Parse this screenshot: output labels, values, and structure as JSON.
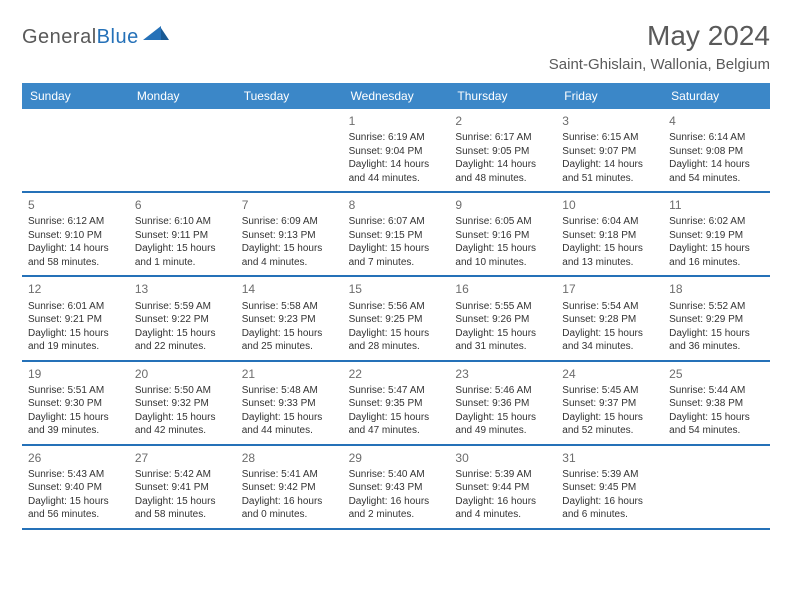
{
  "brand": {
    "general": "General",
    "blue": "Blue"
  },
  "title": "May 2024",
  "location": "Saint-Ghislain, Wallonia, Belgium",
  "colors": {
    "header_bg": "#3b87c8",
    "header_text": "#ffffff",
    "border": "#2571b8",
    "text": "#333333",
    "muted": "#6d6d6d",
    "brand_blue": "#2571b8",
    "brand_gray": "#595959"
  },
  "weekdays": [
    "Sunday",
    "Monday",
    "Tuesday",
    "Wednesday",
    "Thursday",
    "Friday",
    "Saturday"
  ],
  "weeks": [
    [
      null,
      null,
      null,
      {
        "n": "1",
        "sunrise": "6:19 AM",
        "sunset": "9:04 PM",
        "daylight": "14 hours and 44 minutes."
      },
      {
        "n": "2",
        "sunrise": "6:17 AM",
        "sunset": "9:05 PM",
        "daylight": "14 hours and 48 minutes."
      },
      {
        "n": "3",
        "sunrise": "6:15 AM",
        "sunset": "9:07 PM",
        "daylight": "14 hours and 51 minutes."
      },
      {
        "n": "4",
        "sunrise": "6:14 AM",
        "sunset": "9:08 PM",
        "daylight": "14 hours and 54 minutes."
      }
    ],
    [
      {
        "n": "5",
        "sunrise": "6:12 AM",
        "sunset": "9:10 PM",
        "daylight": "14 hours and 58 minutes."
      },
      {
        "n": "6",
        "sunrise": "6:10 AM",
        "sunset": "9:11 PM",
        "daylight": "15 hours and 1 minute."
      },
      {
        "n": "7",
        "sunrise": "6:09 AM",
        "sunset": "9:13 PM",
        "daylight": "15 hours and 4 minutes."
      },
      {
        "n": "8",
        "sunrise": "6:07 AM",
        "sunset": "9:15 PM",
        "daylight": "15 hours and 7 minutes."
      },
      {
        "n": "9",
        "sunrise": "6:05 AM",
        "sunset": "9:16 PM",
        "daylight": "15 hours and 10 minutes."
      },
      {
        "n": "10",
        "sunrise": "6:04 AM",
        "sunset": "9:18 PM",
        "daylight": "15 hours and 13 minutes."
      },
      {
        "n": "11",
        "sunrise": "6:02 AM",
        "sunset": "9:19 PM",
        "daylight": "15 hours and 16 minutes."
      }
    ],
    [
      {
        "n": "12",
        "sunrise": "6:01 AM",
        "sunset": "9:21 PM",
        "daylight": "15 hours and 19 minutes."
      },
      {
        "n": "13",
        "sunrise": "5:59 AM",
        "sunset": "9:22 PM",
        "daylight": "15 hours and 22 minutes."
      },
      {
        "n": "14",
        "sunrise": "5:58 AM",
        "sunset": "9:23 PM",
        "daylight": "15 hours and 25 minutes."
      },
      {
        "n": "15",
        "sunrise": "5:56 AM",
        "sunset": "9:25 PM",
        "daylight": "15 hours and 28 minutes."
      },
      {
        "n": "16",
        "sunrise": "5:55 AM",
        "sunset": "9:26 PM",
        "daylight": "15 hours and 31 minutes."
      },
      {
        "n": "17",
        "sunrise": "5:54 AM",
        "sunset": "9:28 PM",
        "daylight": "15 hours and 34 minutes."
      },
      {
        "n": "18",
        "sunrise": "5:52 AM",
        "sunset": "9:29 PM",
        "daylight": "15 hours and 36 minutes."
      }
    ],
    [
      {
        "n": "19",
        "sunrise": "5:51 AM",
        "sunset": "9:30 PM",
        "daylight": "15 hours and 39 minutes."
      },
      {
        "n": "20",
        "sunrise": "5:50 AM",
        "sunset": "9:32 PM",
        "daylight": "15 hours and 42 minutes."
      },
      {
        "n": "21",
        "sunrise": "5:48 AM",
        "sunset": "9:33 PM",
        "daylight": "15 hours and 44 minutes."
      },
      {
        "n": "22",
        "sunrise": "5:47 AM",
        "sunset": "9:35 PM",
        "daylight": "15 hours and 47 minutes."
      },
      {
        "n": "23",
        "sunrise": "5:46 AM",
        "sunset": "9:36 PM",
        "daylight": "15 hours and 49 minutes."
      },
      {
        "n": "24",
        "sunrise": "5:45 AM",
        "sunset": "9:37 PM",
        "daylight": "15 hours and 52 minutes."
      },
      {
        "n": "25",
        "sunrise": "5:44 AM",
        "sunset": "9:38 PM",
        "daylight": "15 hours and 54 minutes."
      }
    ],
    [
      {
        "n": "26",
        "sunrise": "5:43 AM",
        "sunset": "9:40 PM",
        "daylight": "15 hours and 56 minutes."
      },
      {
        "n": "27",
        "sunrise": "5:42 AM",
        "sunset": "9:41 PM",
        "daylight": "15 hours and 58 minutes."
      },
      {
        "n": "28",
        "sunrise": "5:41 AM",
        "sunset": "9:42 PM",
        "daylight": "16 hours and 0 minutes."
      },
      {
        "n": "29",
        "sunrise": "5:40 AM",
        "sunset": "9:43 PM",
        "daylight": "16 hours and 2 minutes."
      },
      {
        "n": "30",
        "sunrise": "5:39 AM",
        "sunset": "9:44 PM",
        "daylight": "16 hours and 4 minutes."
      },
      {
        "n": "31",
        "sunrise": "5:39 AM",
        "sunset": "9:45 PM",
        "daylight": "16 hours and 6 minutes."
      },
      null
    ]
  ],
  "labels": {
    "sunrise": "Sunrise:",
    "sunset": "Sunset:",
    "daylight": "Daylight:"
  }
}
